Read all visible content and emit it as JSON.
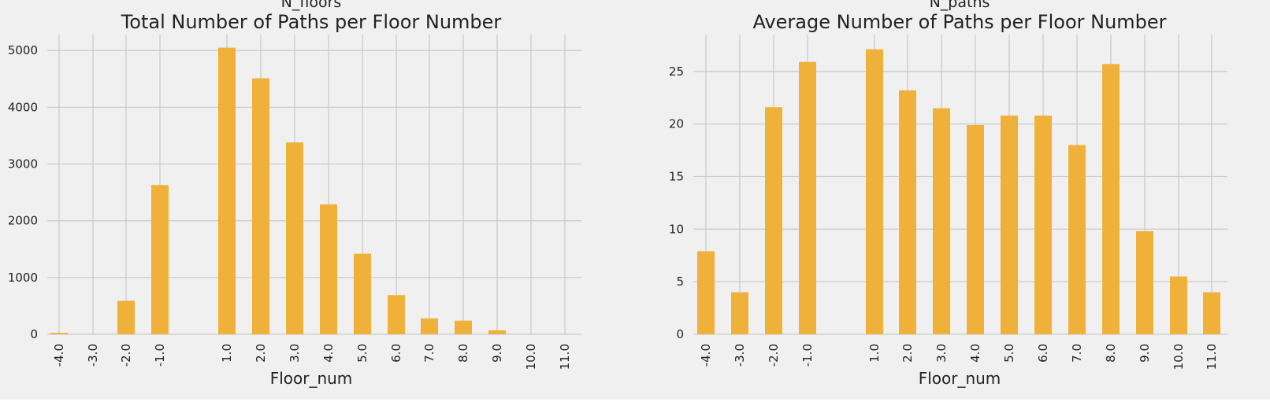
{
  "colors": {
    "bar": "#f0b13a",
    "background": "#f0f0f0",
    "grid": "#cbcbcb"
  },
  "chart_data": [
    {
      "type": "bar",
      "suptitle": "N_floors",
      "title": "Total Number of Paths per Floor Number",
      "xlabel": "Floor_num",
      "ylabel": "",
      "categories": [
        "-4.0",
        "-3.0",
        "-2.0",
        "-1.0",
        "1.0",
        "2.0",
        "3.0",
        "4.0",
        "5.0",
        "6.0",
        "7.0",
        "8.0",
        "9.0",
        "10.0",
        "11.0"
      ],
      "values": [
        25,
        0,
        590,
        2630,
        5050,
        4510,
        3380,
        2290,
        1420,
        690,
        280,
        240,
        70,
        0,
        0
      ],
      "ylim": [
        0,
        5280
      ],
      "yticks": [
        0,
        1000,
        2000,
        3000,
        4000,
        5000
      ],
      "grid": true,
      "legend": "none"
    },
    {
      "type": "bar",
      "suptitle": "N_paths",
      "title": "Average Number of Paths per Floor Number",
      "xlabel": "Floor_num",
      "ylabel": "",
      "categories": [
        "-4.0",
        "-3.0",
        "-2.0",
        "-1.0",
        "1.0",
        "2.0",
        "3.0",
        "4.0",
        "5.0",
        "6.0",
        "7.0",
        "8.0",
        "9.0",
        "10.0",
        "11.0"
      ],
      "values": [
        7.9,
        4.0,
        21.6,
        25.9,
        27.1,
        23.2,
        21.5,
        19.9,
        20.8,
        20.8,
        18.0,
        25.7,
        9.8,
        5.5,
        4.0
      ],
      "ylim": [
        0,
        28.5
      ],
      "yticks": [
        0,
        5,
        10,
        15,
        20,
        25
      ],
      "grid": true,
      "legend": "none"
    }
  ]
}
